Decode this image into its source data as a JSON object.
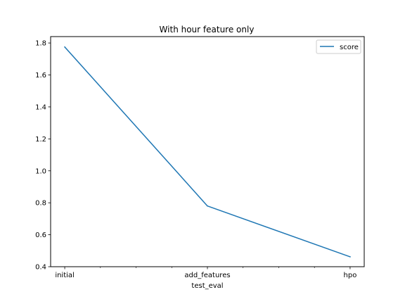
{
  "chart_data": {
    "type": "line",
    "title": "With hour feature only",
    "xlabel": "test_eval",
    "ylabel": "",
    "categories": [
      "initial",
      "add_features",
      "hpo"
    ],
    "series": [
      {
        "name": "score",
        "values": [
          1.775,
          0.78,
          0.462
        ],
        "color": "#1f77b4"
      }
    ],
    "ylim": [
      0.4,
      1.84
    ],
    "yticks": [
      0.4,
      0.6,
      0.8,
      1.0,
      1.2,
      1.4,
      1.6,
      1.8
    ],
    "ytick_labels": [
      "0.4",
      "0.6",
      "0.8",
      "1.0",
      "1.2",
      "1.4",
      "1.6",
      "1.8"
    ],
    "xtick_labels": [
      "initial",
      "add_features",
      "hpo"
    ],
    "grid": false,
    "legend": "top-right"
  }
}
